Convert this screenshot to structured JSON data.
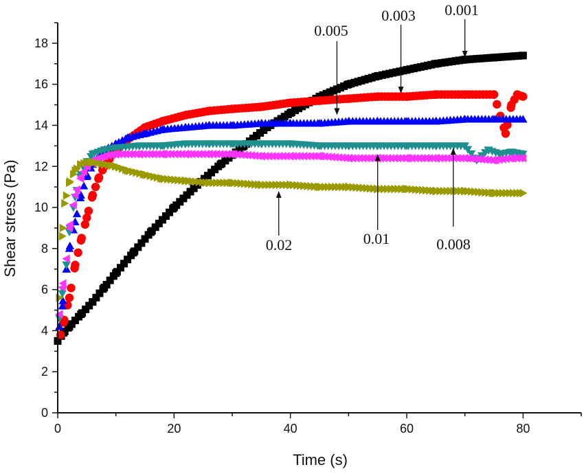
{
  "chart_data": {
    "type": "scatter",
    "title": "",
    "xlabel": "Time (s)",
    "ylabel": "Shear stress (Pa)",
    "xlim": [
      0,
      90
    ],
    "ylim": [
      0,
      19
    ],
    "xticks": [
      0,
      20,
      40,
      60,
      80
    ],
    "xtick_labels": [
      "0",
      "20",
      "40",
      "60",
      "80"
    ],
    "yticks": [
      0,
      2,
      4,
      6,
      8,
      10,
      12,
      14,
      16,
      18
    ],
    "ytick_labels": [
      "0",
      "2",
      "4",
      "6",
      "8",
      "10",
      "12",
      "14",
      "16",
      "18"
    ],
    "grid": false,
    "legend": "none",
    "series": [
      {
        "name": "0.001",
        "color": "#000000",
        "marker": "square",
        "x": [
          0,
          1,
          2,
          4,
          6,
          8,
          10,
          13,
          16,
          20,
          24,
          28,
          32,
          36,
          40,
          45,
          50,
          55,
          60,
          65,
          70,
          75,
          80
        ],
        "y": [
          3.5,
          3.9,
          4.2,
          4.8,
          5.4,
          6.1,
          6.8,
          7.8,
          8.8,
          10.0,
          11.1,
          12.1,
          13.0,
          13.9,
          14.6,
          15.4,
          16.0,
          16.4,
          16.7,
          17.0,
          17.2,
          17.3,
          17.4
        ]
      },
      {
        "name": "0.003",
        "color": "#ff0000",
        "marker": "circle",
        "x": [
          0.5,
          1,
          2,
          3,
          4,
          5,
          6,
          7,
          8,
          10,
          12,
          15,
          18,
          22,
          26,
          30,
          35,
          40,
          45,
          50,
          55,
          60,
          65,
          70,
          75,
          77,
          78,
          79,
          80
        ],
        "y": [
          3.8,
          4.4,
          5.6,
          7.2,
          8.4,
          9.5,
          10.6,
          11.4,
          12.0,
          12.8,
          13.3,
          13.9,
          14.2,
          14.5,
          14.7,
          14.8,
          14.9,
          15.1,
          15.2,
          15.3,
          15.4,
          15.4,
          15.5,
          15.5,
          15.5,
          13.6,
          15.0,
          15.5,
          15.4
        ]
      },
      {
        "name": "0.005",
        "color": "#0000ff",
        "marker": "triangle-up",
        "x": [
          0.3,
          0.8,
          1.5,
          2,
          3,
          4,
          5,
          6,
          7,
          8,
          10,
          12,
          15,
          18,
          22,
          26,
          30,
          35,
          40,
          45,
          50,
          55,
          60,
          65,
          70,
          75,
          80
        ],
        "y": [
          4.2,
          5.2,
          7.0,
          8.0,
          9.3,
          10.6,
          11.5,
          12.1,
          12.5,
          12.8,
          13.1,
          13.4,
          13.6,
          13.8,
          13.9,
          14.0,
          14.0,
          14.1,
          14.1,
          14.1,
          14.2,
          14.2,
          14.2,
          14.2,
          14.3,
          14.3,
          14.3
        ]
      },
      {
        "name": "0.008",
        "color": "#1f8f8f",
        "marker": "triangle-down",
        "x": [
          0.3,
          0.8,
          1.5,
          2,
          3,
          4,
          5,
          6,
          8,
          10,
          14,
          18,
          22,
          26,
          30,
          35,
          40,
          45,
          50,
          55,
          60,
          65,
          70,
          72,
          74,
          76,
          78,
          80
        ],
        "y": [
          4.6,
          5.8,
          7.2,
          8.8,
          10.5,
          11.6,
          12.2,
          12.6,
          12.8,
          12.9,
          13.0,
          13.0,
          13.1,
          13.1,
          13.1,
          13.1,
          13.1,
          13.0,
          13.0,
          13.0,
          13.0,
          13.0,
          13.0,
          12.3,
          12.8,
          12.6,
          12.7,
          12.6
        ]
      },
      {
        "name": "0.01",
        "color": "#ff33ff",
        "marker": "triangle-left",
        "x": [
          0.3,
          0.8,
          1.5,
          2,
          3,
          4,
          5,
          6,
          8,
          10,
          14,
          18,
          22,
          26,
          30,
          35,
          40,
          45,
          50,
          55,
          60,
          65,
          70,
          75,
          78,
          80
        ],
        "y": [
          4.8,
          6.1,
          7.5,
          9.0,
          10.6,
          11.5,
          12.0,
          12.3,
          12.5,
          12.6,
          12.6,
          12.6,
          12.6,
          12.6,
          12.6,
          12.5,
          12.5,
          12.5,
          12.4,
          12.4,
          12.4,
          12.4,
          12.4,
          12.3,
          12.4,
          12.4
        ]
      },
      {
        "name": "0.02",
        "color": "#999900",
        "marker": "triangle-right",
        "x": [
          0.3,
          0.8,
          1.2,
          2,
          3,
          4,
          5,
          6,
          8,
          10,
          12,
          15,
          18,
          22,
          26,
          30,
          35,
          40,
          45,
          50,
          55,
          60,
          65,
          70,
          75,
          80
        ],
        "y": [
          5.6,
          8.6,
          10.2,
          11.2,
          11.8,
          12.1,
          12.2,
          12.2,
          12.1,
          12.0,
          11.8,
          11.6,
          11.4,
          11.3,
          11.2,
          11.2,
          11.1,
          11.1,
          11.0,
          11.0,
          10.9,
          10.9,
          10.8,
          10.8,
          10.7,
          10.7
        ]
      }
    ],
    "annotations": [
      {
        "text": "0.001",
        "tip": [
          70,
          17.2
        ]
      },
      {
        "text": "0.003",
        "tip": [
          59,
          15.45
        ]
      },
      {
        "text": "0.005",
        "tip": [
          48,
          14.4
        ]
      },
      {
        "text": "0.01",
        "tip": [
          55,
          12.7
        ]
      },
      {
        "text": "0.008",
        "tip": [
          68,
          13.0
        ]
      },
      {
        "text": "0.02",
        "tip": [
          38,
          10.9
        ]
      }
    ]
  }
}
